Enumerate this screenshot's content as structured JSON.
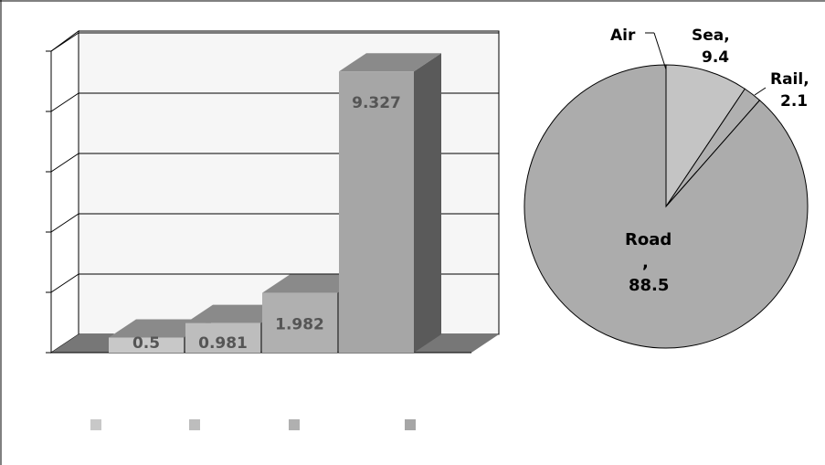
{
  "colors": {
    "plot_back_wall": "#f6f6f6",
    "plot_floor": "#777777",
    "axis_line": "#000000",
    "bar_fronts": [
      "#c8c8c8",
      "#bdbdbd",
      "#b0b0b0",
      "#a6a6a6"
    ],
    "bar_tops": "#8a8a8a",
    "bar_sides": "#5a5a5a",
    "bar_label": "#555555",
    "pie_slices": {
      "Air": "#b8b8b8",
      "Sea": "#c4c4c4",
      "Rail": "#b0b0b0",
      "Road": "#acacac"
    },
    "legend_swatches": [
      "#c8c8c8",
      "#bdbdbd",
      "#b0b0b0",
      "#a6a6a6"
    ]
  },
  "chart_data": [
    {
      "type": "bar",
      "style": "3d-column",
      "categories": [
        "",
        "",
        "",
        ""
      ],
      "values": [
        0.5,
        0.981,
        1.982,
        9.327
      ],
      "data_labels": [
        "0.5",
        "0.981",
        "1.982",
        "9.327"
      ],
      "title": "",
      "xlabel": "",
      "ylabel": "",
      "ylim": [
        0,
        10
      ],
      "y_tick_count": 6,
      "y_tick_labels_visible": false,
      "grid": true,
      "legend": {
        "placement": "bottom",
        "entries": [
          "",
          "",
          "",
          ""
        ]
      }
    },
    {
      "type": "pie",
      "title": "",
      "slices": [
        {
          "label": "Air",
          "label_text": "Air",
          "value": 0.0
        },
        {
          "label": "Sea",
          "label_text": "Sea,",
          "value_text": "9.4",
          "value": 9.4
        },
        {
          "label": "Rail",
          "label_text": "Rail,",
          "value_text": "2.1",
          "value": 2.1
        },
        {
          "label": "Road",
          "label_text": "Road",
          "comma_text": ",",
          "value_text": "88.5",
          "value": 88.5
        }
      ],
      "start": "12 o'clock",
      "direction": "clockwise"
    }
  ]
}
